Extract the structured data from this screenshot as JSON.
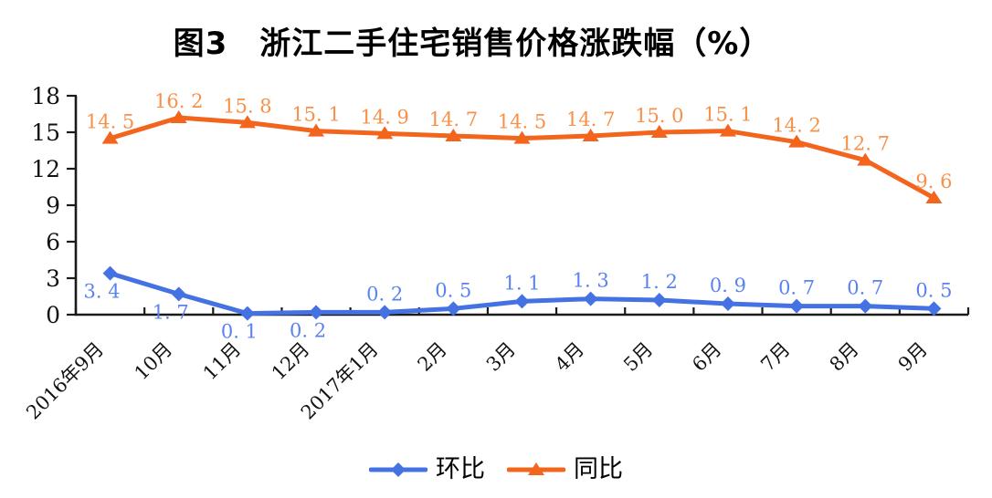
{
  "title": "图3　浙江二手住宅销售价格涨跌幅（%）",
  "chart_data": {
    "type": "line",
    "categories": [
      "2016年9月",
      "10月",
      "11月",
      "12月",
      "2017年1月",
      "2月",
      "3月",
      "4月",
      "5月",
      "6月",
      "7月",
      "8月",
      "9月"
    ],
    "series": [
      {
        "name": "环比",
        "marker": "diamond",
        "color": "#4472e3",
        "label_color": "#5b83ee",
        "values": [
          3.4,
          1.7,
          0.1,
          0.2,
          0.2,
          0.5,
          1.1,
          1.3,
          1.2,
          0.9,
          0.7,
          0.7,
          0.5
        ],
        "labels_below": [
          0,
          1,
          2,
          3
        ]
      },
      {
        "name": "同比",
        "marker": "triangle",
        "color": "#f3641d",
        "label_color": "#f7914a",
        "values": [
          14.5,
          16.2,
          15.8,
          15.1,
          14.9,
          14.7,
          14.5,
          14.7,
          15.0,
          15.1,
          14.2,
          12.7,
          9.6
        ],
        "labels_below": []
      }
    ],
    "title": "图3　浙江二手住宅销售价格涨跌幅（%）",
    "xlabel": "",
    "ylabel": "",
    "ylim": [
      0,
      18
    ],
    "yticks": [
      0,
      3,
      6,
      9,
      12,
      15,
      18
    ],
    "grid": false,
    "legend_position": "bottom",
    "axis_color": "#1a1a1a"
  }
}
